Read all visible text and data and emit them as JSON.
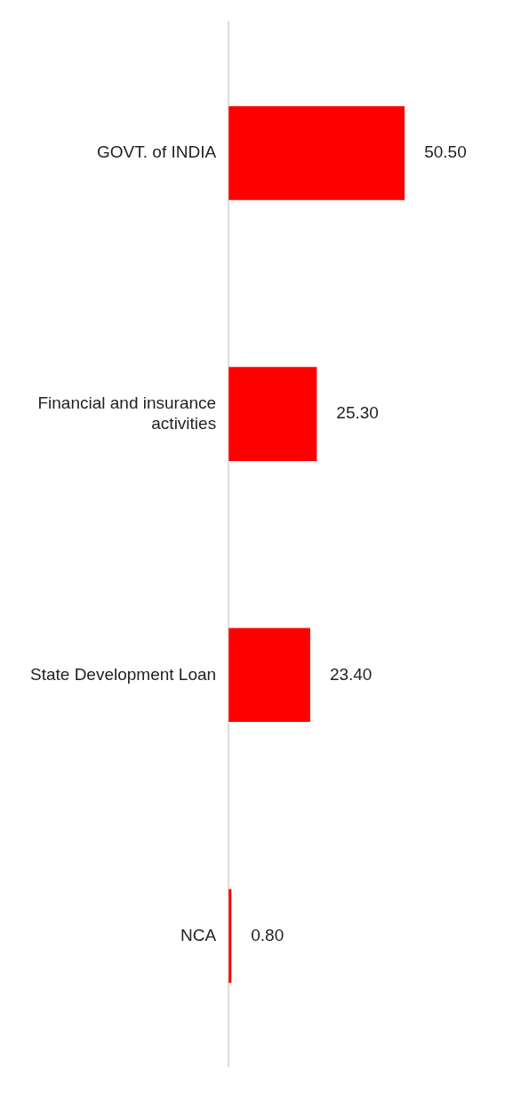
{
  "chart_data": {
    "type": "bar",
    "orientation": "horizontal",
    "categories": [
      "GOVT. of INDIA",
      "Financial and insurance activities",
      "State Development Loan",
      "NCA"
    ],
    "values": [
      50.5,
      25.3,
      23.4,
      0.8
    ],
    "value_labels": [
      "50.50",
      "25.30",
      "23.40",
      "0.80"
    ],
    "color": "#ff0000",
    "grid": false,
    "legend": false,
    "tick_labels": "y"
  }
}
